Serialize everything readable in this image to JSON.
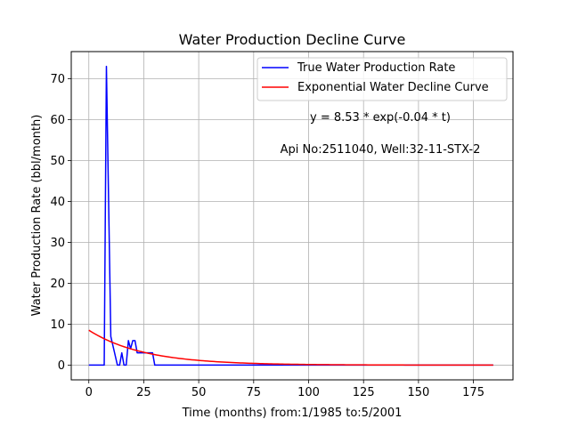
{
  "chart_data": {
    "type": "line",
    "title": "Water Production Decline Curve",
    "xlabel": "Time (months) from:1/1985 to:5/2001",
    "ylabel": "Water Production Rate (bbl/month)",
    "xlim": [
      -8,
      193
    ],
    "ylim": [
      -3.6,
      76.6
    ],
    "xticks": [
      0,
      25,
      50,
      75,
      100,
      125,
      150,
      175
    ],
    "yticks": [
      0,
      10,
      20,
      30,
      40,
      50,
      60,
      70
    ],
    "grid": true,
    "legend_position": "top-right",
    "annotations": [
      "y = 8.53 * exp(-0.04 * t)",
      "Api No:2511040, Well:32-11-STX-2"
    ],
    "series": [
      {
        "name": "True Water Production Rate",
        "color": "#0000ff",
        "x": [
          0,
          7,
          8,
          10,
          13,
          14,
          15,
          16,
          17,
          18,
          19,
          20,
          21,
          22,
          23,
          25,
          26,
          29,
          30,
          184
        ],
        "y": [
          0,
          0,
          73,
          7,
          0,
          0,
          3,
          0,
          0,
          6,
          4,
          6,
          6,
          3,
          3,
          3,
          3,
          3,
          0,
          0
        ]
      },
      {
        "name": "Exponential Water Decline Curve",
        "color": "#ff0000",
        "function": {
          "a": 8.53,
          "b": 0.04,
          "x_start": 0,
          "x_end": 184
        }
      }
    ]
  }
}
